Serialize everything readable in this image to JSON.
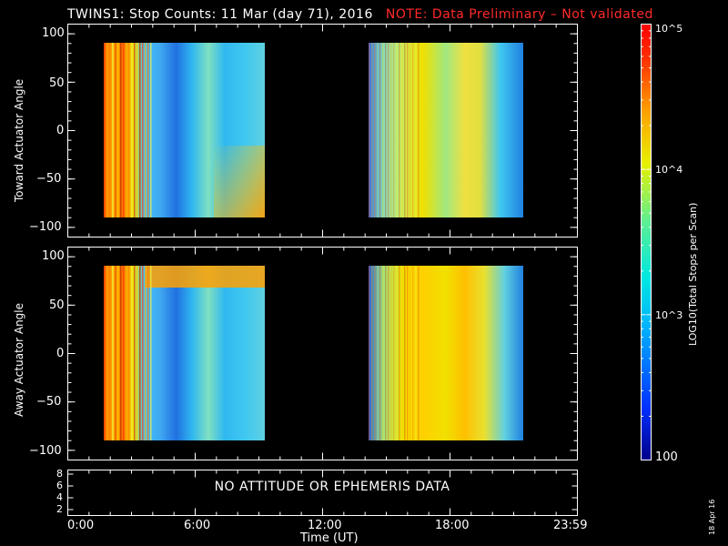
{
  "title": "TWINS1: Stop Counts: 11 Mar (day  71), 2016",
  "warning": "NOTE: Data Preliminary – Not validated",
  "no_data_message": "NO ATTITUDE OR EPHEMERIS DATA",
  "date_stamp": "18 Apr 16",
  "colors": {
    "background": "#000000",
    "warning": "#ff2a2a",
    "axes": "#ffffff"
  },
  "chart_data": [
    {
      "type": "heatmap",
      "ylabel": "Toward Actuator Angle",
      "ylim": [
        -110,
        110
      ],
      "yticks": [
        "100",
        "50",
        "0",
        "−50",
        "−100"
      ],
      "y_range_shown": [
        -90,
        90
      ],
      "data_blocks_ut_hours": [
        [
          1.6,
          9.2
        ],
        [
          14.0,
          21.5
        ]
      ],
      "colorbar": {
        "label": "LOG10(Total Stops per Scan)",
        "scale": "log",
        "range": [
          100,
          100000
        ],
        "tick_labels": [
          "100",
          "10^3",
          "10^4",
          "10^5"
        ]
      }
    },
    {
      "type": "heatmap",
      "ylabel": "Away Actuator Angle",
      "ylim": [
        -110,
        110
      ],
      "yticks": [
        "100",
        "50",
        "0",
        "−50",
        "−100"
      ],
      "y_range_shown": [
        -90,
        90
      ],
      "data_blocks_ut_hours": [
        [
          1.6,
          9.2
        ],
        [
          14.0,
          21.5
        ]
      ]
    },
    {
      "type": "line",
      "ylim": [
        1.5,
        8.5
      ],
      "yticks": [
        "8",
        "6",
        "4",
        "2"
      ],
      "values": []
    }
  ],
  "x_axis": {
    "label": "Time (UT)",
    "tick_labels": [
      "0:00",
      "6:00",
      "12:00",
      "18:00",
      "23:59"
    ],
    "range_hours": [
      0,
      24
    ]
  }
}
